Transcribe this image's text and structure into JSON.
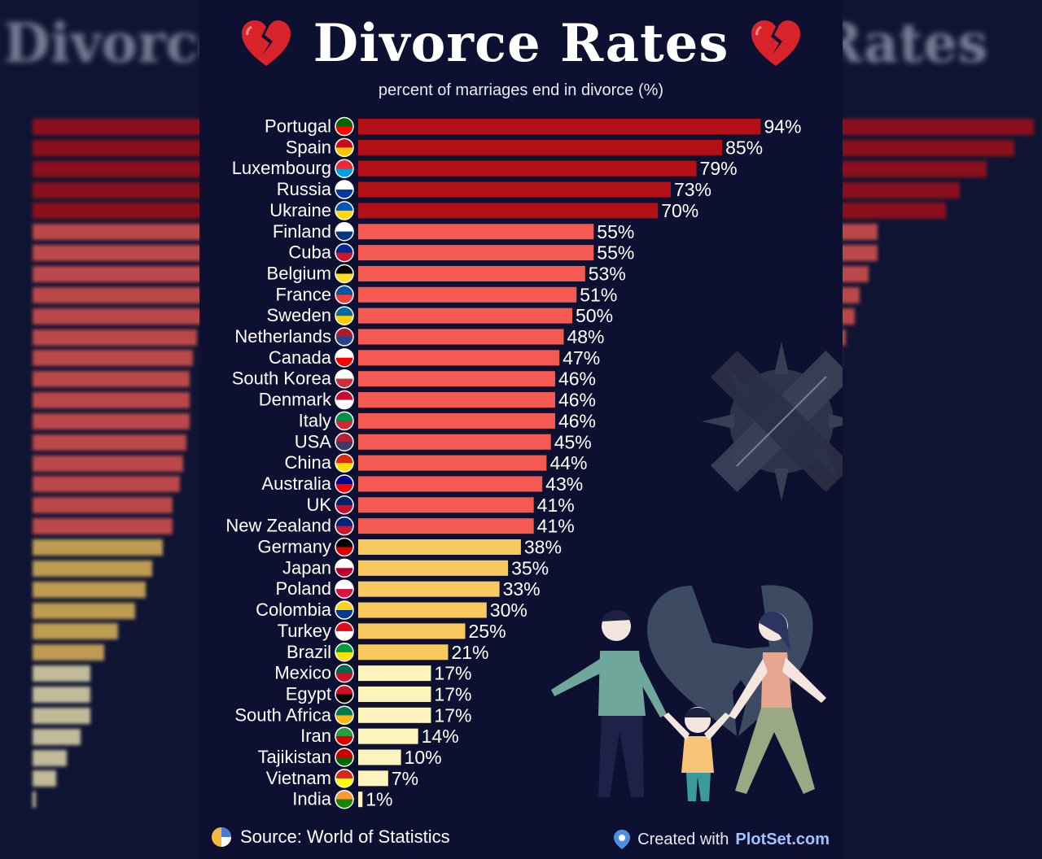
{
  "header": {
    "title": "Divorce Rates",
    "subtitle": "percent of marriages end in divorce (%)"
  },
  "footer": {
    "source": "Source: World of Statistics",
    "created_with": "Created with",
    "brand": "PlotSet.com"
  },
  "colors": {
    "background": "#0d1030",
    "tier_dark_red": "#b30f16",
    "tier_salmon": "#f45a52",
    "tier_gold": "#f8c95e",
    "tier_cream": "#fdf3bd",
    "label_text": "#ffffff"
  },
  "chart_data": {
    "type": "bar",
    "orientation": "horizontal",
    "title": "Divorce Rates",
    "subtitle": "percent of marriages end in divorce (%)",
    "value_suffix": "%",
    "categories": [
      "Portugal",
      "Spain",
      "Luxembourg",
      "Russia",
      "Ukraine",
      "Finland",
      "Cuba",
      "Belgium",
      "France",
      "Sweden",
      "Netherlands",
      "Canada",
      "South Korea",
      "Denmark",
      "Italy",
      "USA",
      "China",
      "Australia",
      "UK",
      "New Zealand",
      "Germany",
      "Japan",
      "Poland",
      "Colombia",
      "Turkey",
      "Brazil",
      "Mexico",
      "Egypt",
      "South Africa",
      "Iran",
      "Tajikistan",
      "Vietnam",
      "India"
    ],
    "values": [
      94,
      85,
      79,
      73,
      70,
      55,
      55,
      53,
      51,
      50,
      48,
      47,
      46,
      46,
      46,
      45,
      44,
      43,
      41,
      41,
      38,
      35,
      33,
      30,
      25,
      21,
      17,
      17,
      17,
      14,
      10,
      7,
      1
    ],
    "flag_icons": [
      "portugal-flag",
      "spain-flag",
      "luxembourg-flag",
      "russia-flag",
      "ukraine-flag",
      "finland-flag",
      "cuba-flag",
      "belgium-flag",
      "france-flag",
      "sweden-flag",
      "netherlands-flag",
      "canada-flag",
      "south-korea-flag",
      "denmark-flag",
      "italy-flag",
      "usa-flag",
      "china-flag",
      "australia-flag",
      "uk-flag",
      "new-zealand-flag",
      "germany-flag",
      "japan-flag",
      "poland-flag",
      "colombia-flag",
      "turkey-flag",
      "brazil-flag",
      "mexico-flag",
      "egypt-flag",
      "south-africa-flag",
      "iran-flag",
      "tajikistan-flag",
      "vietnam-flag",
      "india-flag"
    ],
    "color_tiers": [
      {
        "min": 60,
        "color": "#b30f16"
      },
      {
        "min": 40,
        "color": "#f45a52"
      },
      {
        "min": 20,
        "color": "#f8c95e"
      },
      {
        "min": 0,
        "color": "#fdf3bd"
      }
    ],
    "xlim": [
      0,
      100
    ],
    "grid": false,
    "legend": "none"
  },
  "decor_icons": [
    "broken-heart-icon",
    "virus-icon",
    "broken-heart-family-illustration"
  ]
}
